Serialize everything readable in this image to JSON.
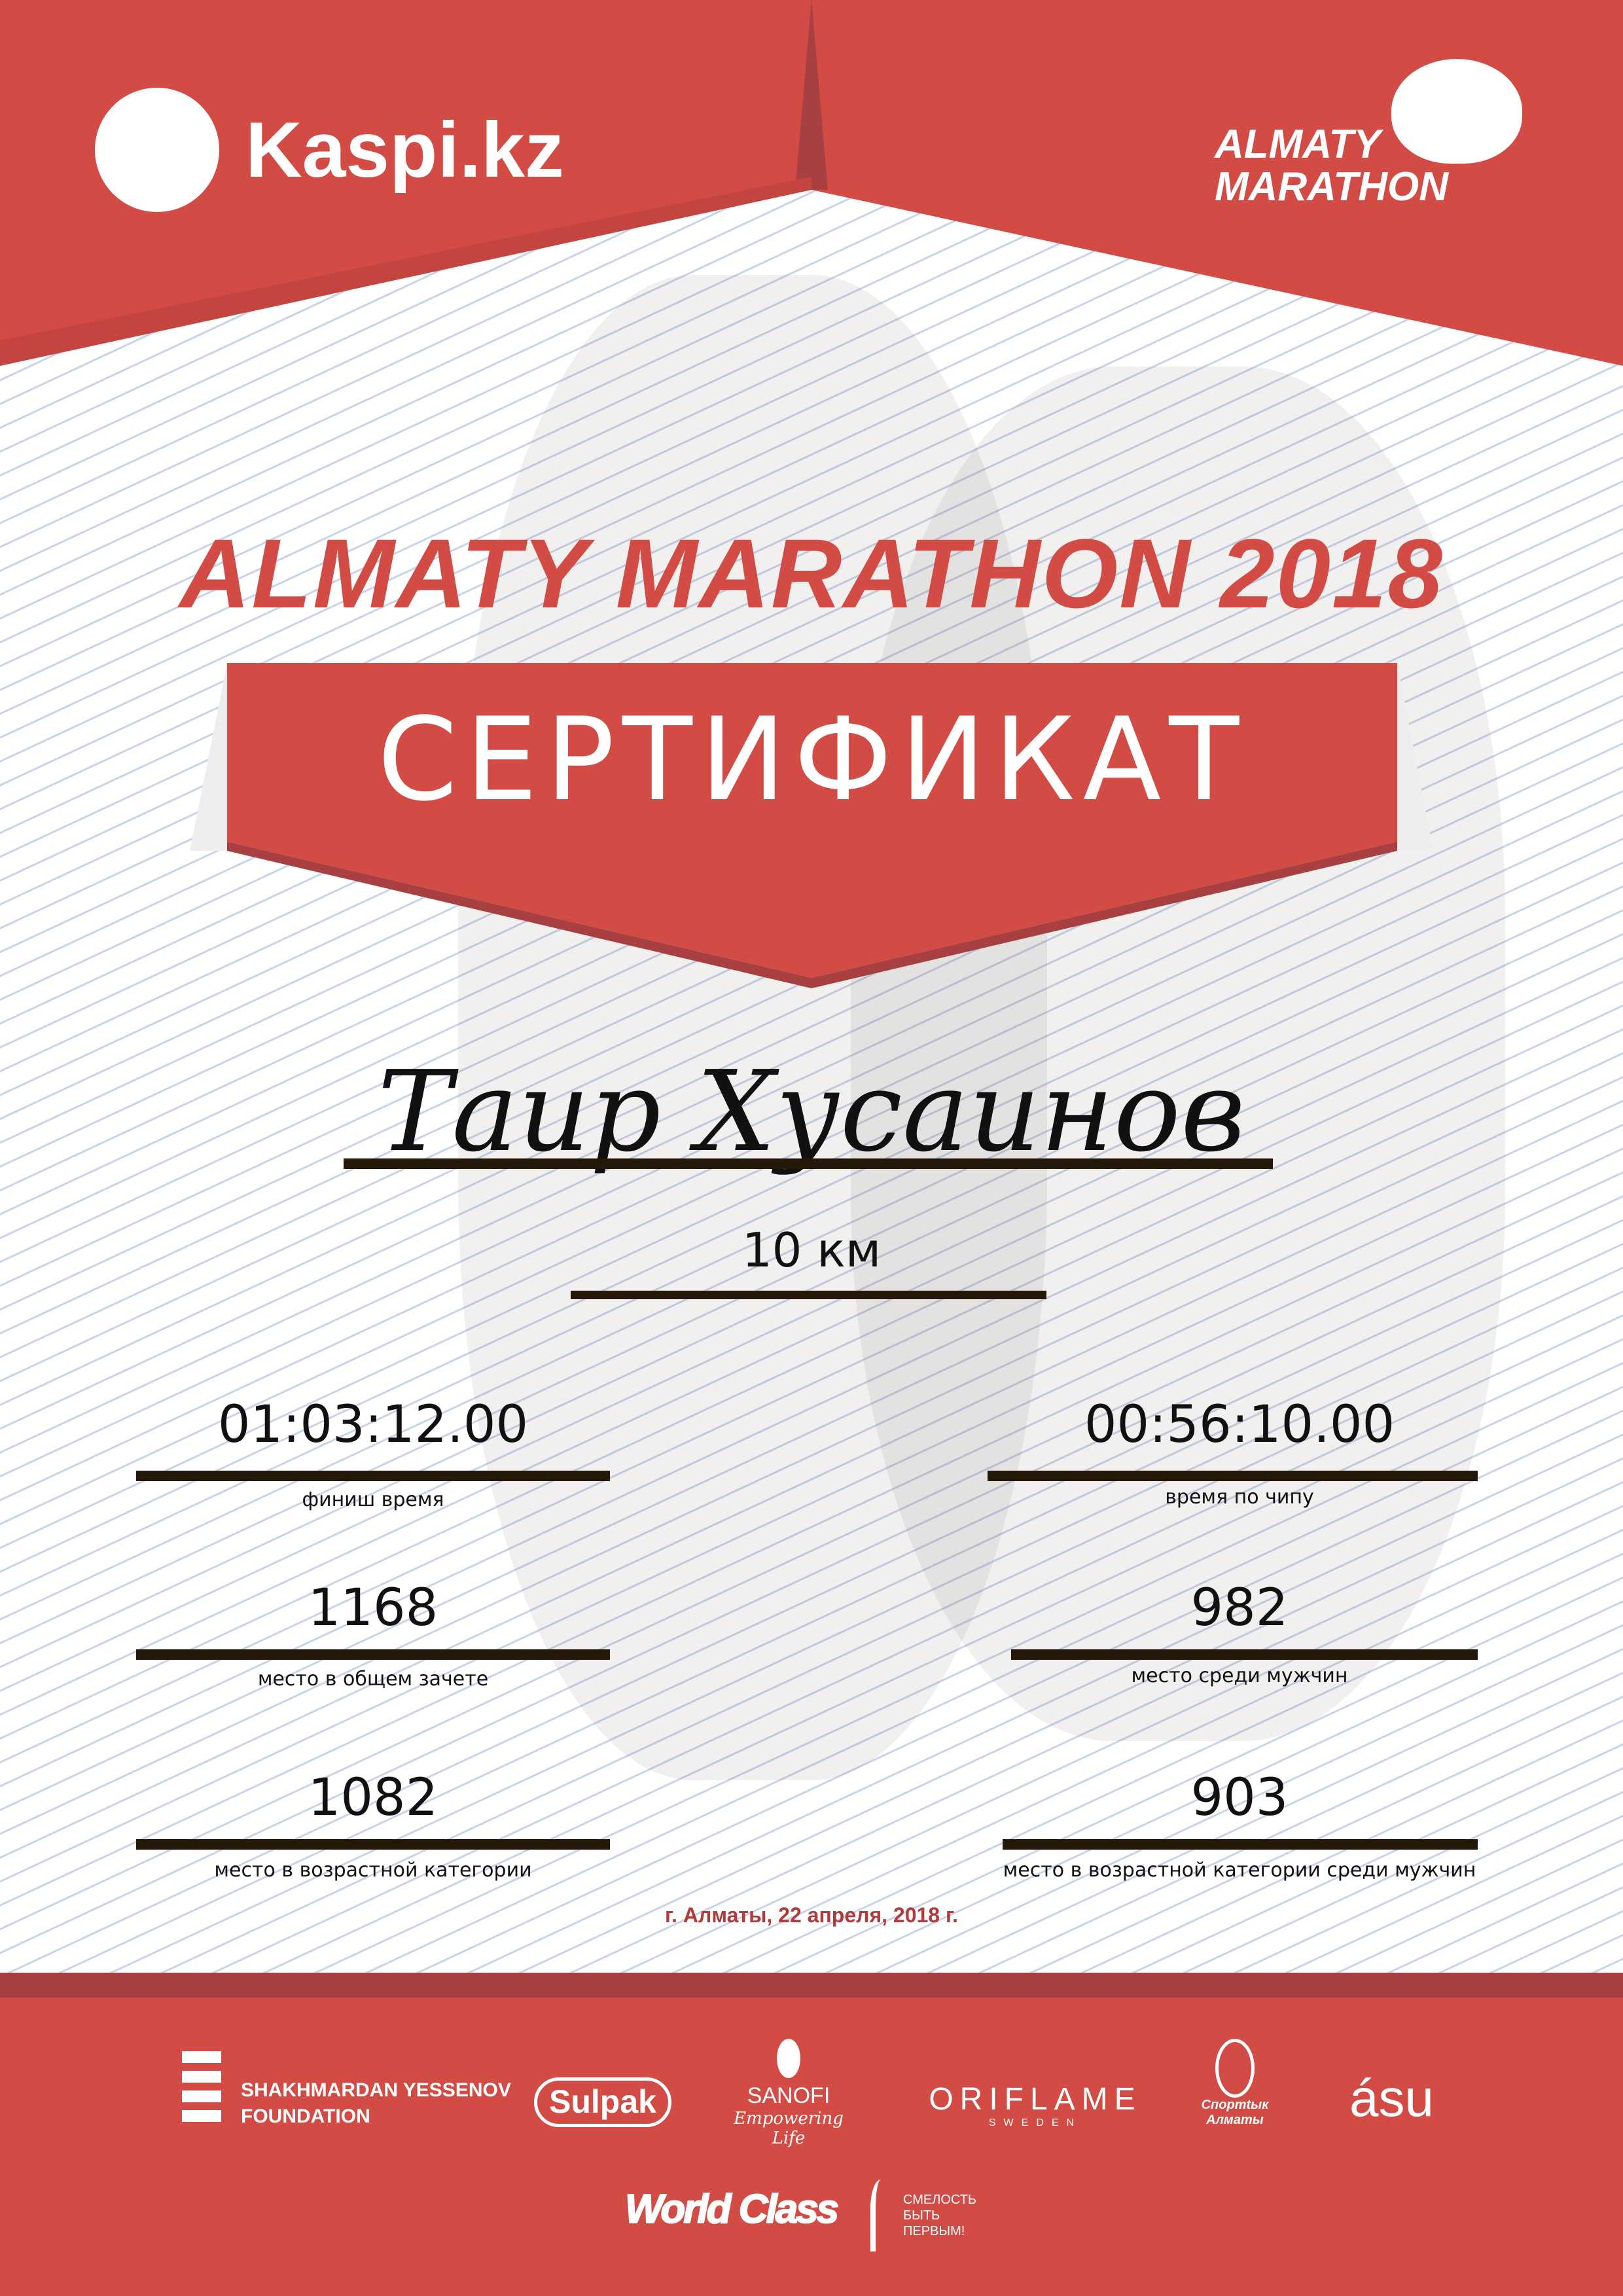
{
  "colors": {
    "brand_red": "#d34b45",
    "dark_red": "#a84042",
    "date_red": "#b13a3a"
  },
  "header": {
    "kaspi_logo": "Kaspi.kz",
    "marathon_logo": [
      "ALMATY",
      "MARATHON"
    ]
  },
  "event_title": "ALMATY MARATHON 2018",
  "certificate_label": "СЕРТИФИКАТ",
  "participant": {
    "name": "Таир Хусаинов",
    "distance": "10 км"
  },
  "results": {
    "left": [
      {
        "value": "01:03:12.00",
        "label": "финиш время"
      },
      {
        "value": "1168",
        "label": "место в общем зачете"
      },
      {
        "value": "1082",
        "label": "место в возрастной категории"
      }
    ],
    "right": [
      {
        "value": "00:56:10.00",
        "label": "время по чипу"
      },
      {
        "value": "982",
        "label": "место среди мужчин"
      },
      {
        "value": "903",
        "label": "место в возрастной категории среди мужчин"
      }
    ]
  },
  "date": "г. Алматы, 22 апреля, 2018 г.",
  "sponsors": {
    "yessenov": [
      "SHAKHMARDAN YESSENOV",
      "FOUNDATION"
    ],
    "sulpak": "Sulpak",
    "sanofi": [
      "SANOFI",
      "Empowering Life"
    ],
    "oriflame": [
      "ORIFLAME",
      "SWEDEN"
    ],
    "sport_almaty": [
      "Спортtык",
      "Алматы"
    ],
    "asu": "ásu",
    "worldclass": "World Class",
    "fund": [
      "СМЕЛОСТЬ",
      "БЫТЬ",
      "ПЕРВЫМ!"
    ]
  }
}
